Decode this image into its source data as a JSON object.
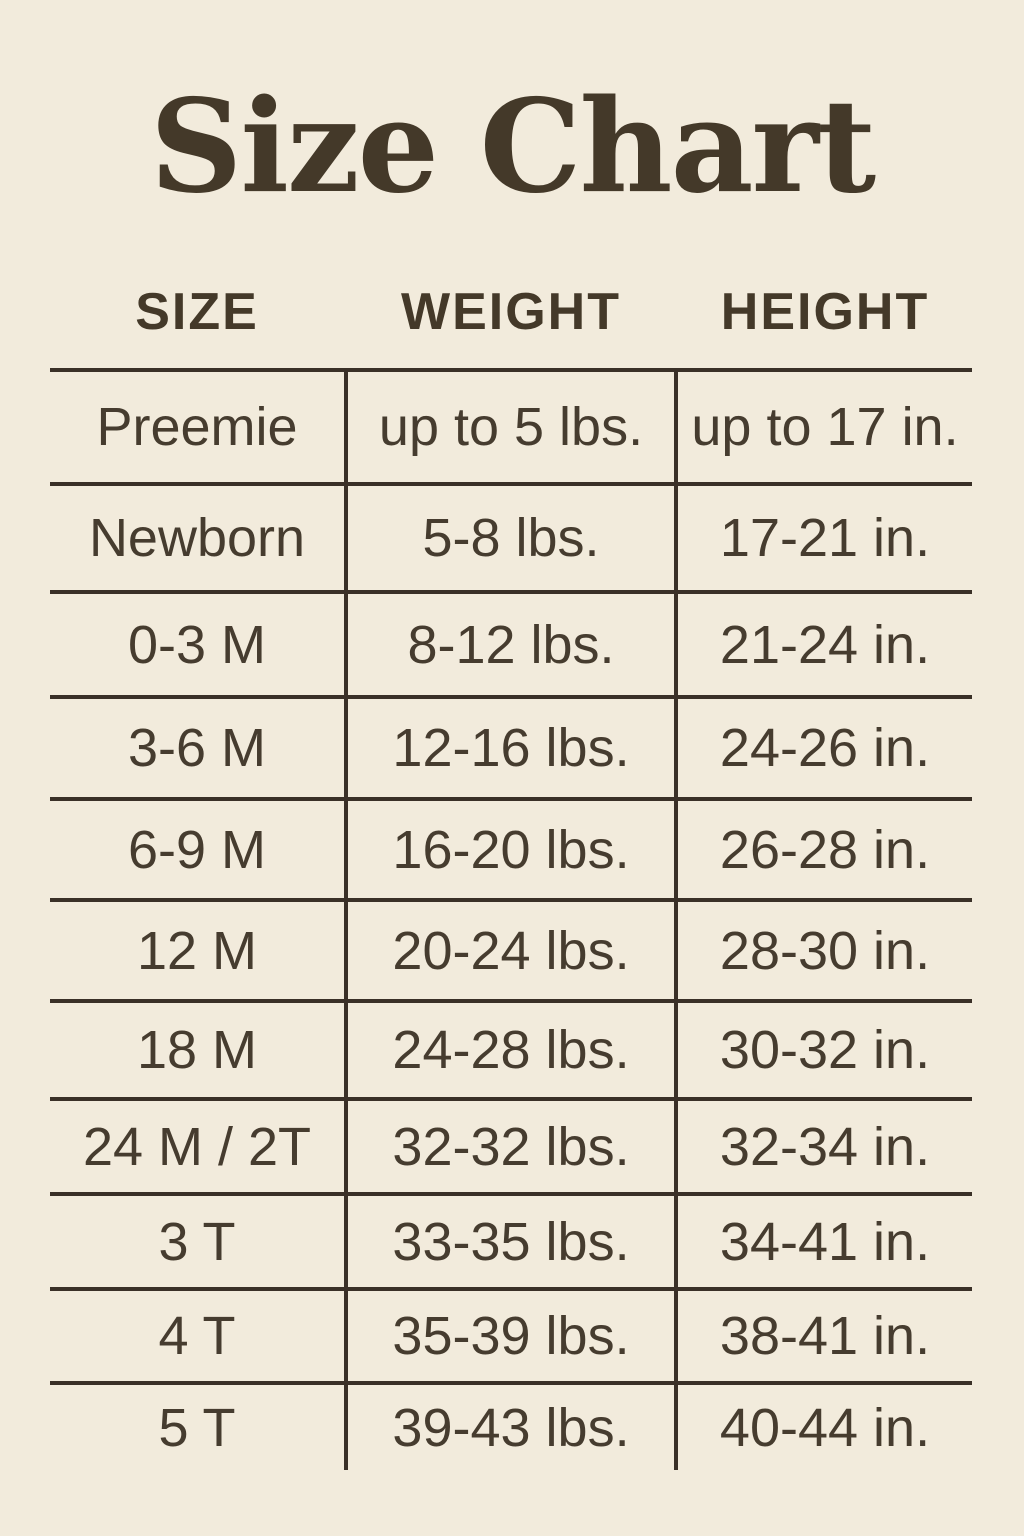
{
  "colors": {
    "background": "#f2ebdc",
    "line": "#3a3027",
    "text": "#463c2f",
    "heading": "#443929"
  },
  "chart_data": {
    "type": "table",
    "title": "Size Chart",
    "columns": [
      "SIZE",
      "WEIGHT",
      "HEIGHT"
    ],
    "rows": [
      [
        "Preemie",
        "up to 5 lbs.",
        "up to 17 in."
      ],
      [
        "Newborn",
        "5-8 lbs.",
        "17-21 in."
      ],
      [
        "0-3 M",
        "8-12 lbs.",
        "21-24 in."
      ],
      [
        "3-6 M",
        "12-16 lbs.",
        "24-26 in."
      ],
      [
        "6-9 M",
        "16-20 lbs.",
        "26-28 in."
      ],
      [
        "12 M",
        "20-24 lbs.",
        "28-30 in."
      ],
      [
        "18 M",
        "24-28 lbs.",
        "30-32 in."
      ],
      [
        "24 M / 2T",
        "32-32 lbs.",
        "32-34 in."
      ],
      [
        "3 T",
        "33-35 lbs.",
        "34-41 in."
      ],
      [
        "4 T",
        "35-39 lbs.",
        "38-41 in."
      ],
      [
        "5 T",
        "39-43 lbs.",
        "40-44 in."
      ]
    ]
  }
}
